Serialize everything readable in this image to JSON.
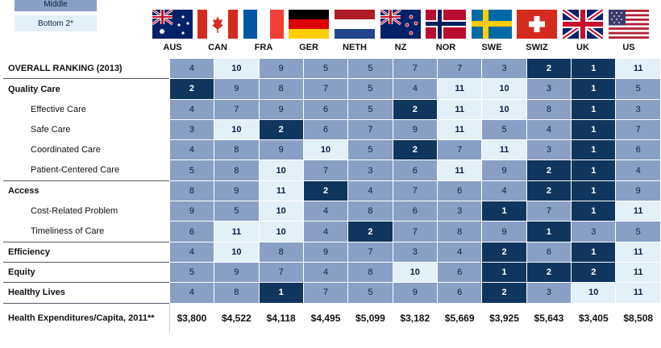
{
  "legend": {
    "middle": "Middle",
    "bottom": "Bottom 2*"
  },
  "flags": [
    "flag-australia-icon",
    "flag-canada-icon",
    "flag-france-icon",
    "flag-germany-icon",
    "flag-netherlands-icon",
    "flag-new-zealand-icon",
    "flag-norway-icon",
    "flag-sweden-icon",
    "flag-switzerland-icon",
    "flag-uk-icon",
    "flag-us-icon"
  ],
  "colors": {
    "top": "#0f365e",
    "middle": "#8a9fc6",
    "bottom": "#e4f0f8"
  },
  "chart_data": {
    "type": "table",
    "columns": [
      "AUS",
      "CAN",
      "FRA",
      "GER",
      "NETH",
      "NZ",
      "NOR",
      "SWE",
      "SWIZ",
      "UK",
      "US"
    ],
    "rows": [
      {
        "label": "OVERALL RANKING (2013)",
        "style": "bold",
        "values": [
          4,
          10,
          9,
          5,
          5,
          7,
          7,
          3,
          2,
          1,
          11
        ],
        "tiers": [
          "mid",
          "bot",
          "mid",
          "mid",
          "mid",
          "mid",
          "mid",
          "mid",
          "top",
          "top",
          "bot"
        ]
      },
      {
        "label": "Quality Care",
        "style": "bold",
        "values": [
          2,
          9,
          8,
          7,
          5,
          4,
          11,
          10,
          3,
          1,
          5
        ],
        "tiers": [
          "top",
          "mid",
          "mid",
          "mid",
          "mid",
          "mid",
          "bot",
          "bot",
          "mid",
          "top",
          "mid"
        ]
      },
      {
        "label": "Effective Care",
        "style": "sub",
        "values": [
          4,
          7,
          9,
          6,
          5,
          2,
          11,
          10,
          8,
          1,
          3
        ],
        "tiers": [
          "mid",
          "mid",
          "mid",
          "mid",
          "mid",
          "top",
          "bot",
          "bot",
          "mid",
          "top",
          "mid"
        ]
      },
      {
        "label": "Safe Care",
        "style": "sub",
        "values": [
          3,
          10,
          2,
          6,
          7,
          9,
          11,
          5,
          4,
          1,
          7
        ],
        "tiers": [
          "mid",
          "bot",
          "top",
          "mid",
          "mid",
          "mid",
          "bot",
          "mid",
          "mid",
          "top",
          "mid"
        ]
      },
      {
        "label": "Coordinated Care",
        "style": "sub",
        "values": [
          4,
          8,
          9,
          10,
          5,
          2,
          7,
          11,
          3,
          1,
          6
        ],
        "tiers": [
          "mid",
          "mid",
          "mid",
          "bot",
          "mid",
          "top",
          "mid",
          "bot",
          "mid",
          "top",
          "mid"
        ]
      },
      {
        "label": "Patient-Centered Care",
        "style": "sub",
        "values": [
          5,
          8,
          10,
          7,
          3,
          6,
          11,
          9,
          2,
          1,
          4
        ],
        "tiers": [
          "mid",
          "mid",
          "bot",
          "mid",
          "mid",
          "mid",
          "bot",
          "mid",
          "top",
          "top",
          "mid"
        ]
      },
      {
        "label": "Access",
        "style": "bold",
        "values": [
          8,
          9,
          11,
          2,
          4,
          7,
          6,
          4,
          2,
          1,
          9
        ],
        "tiers": [
          "mid",
          "mid",
          "bot",
          "top",
          "mid",
          "mid",
          "mid",
          "mid",
          "top",
          "top",
          "mid"
        ]
      },
      {
        "label": "Cost-Related Problem",
        "style": "sub",
        "values": [
          9,
          5,
          10,
          4,
          8,
          6,
          3,
          1,
          7,
          1,
          11
        ],
        "tiers": [
          "mid",
          "mid",
          "bot",
          "mid",
          "mid",
          "mid",
          "mid",
          "top",
          "mid",
          "top",
          "bot"
        ]
      },
      {
        "label": "Timeliness of Care",
        "style": "sub",
        "values": [
          6,
          11,
          10,
          4,
          2,
          7,
          8,
          9,
          1,
          3,
          5
        ],
        "tiers": [
          "mid",
          "bot",
          "bot",
          "mid",
          "top",
          "mid",
          "mid",
          "mid",
          "top",
          "mid",
          "mid"
        ]
      },
      {
        "label": "Efficiency",
        "style": "bold",
        "values": [
          4,
          10,
          8,
          9,
          7,
          3,
          4,
          2,
          6,
          1,
          11
        ],
        "tiers": [
          "mid",
          "bot",
          "mid",
          "mid",
          "mid",
          "mid",
          "mid",
          "top",
          "mid",
          "top",
          "bot"
        ]
      },
      {
        "label": "Equity",
        "style": "bold",
        "values": [
          5,
          9,
          7,
          4,
          8,
          10,
          6,
          1,
          2,
          2,
          11
        ],
        "tiers": [
          "mid",
          "mid",
          "mid",
          "mid",
          "mid",
          "bot",
          "mid",
          "top",
          "top",
          "top",
          "bot"
        ]
      },
      {
        "label": "Healthy Lives",
        "style": "bold",
        "values": [
          4,
          8,
          1,
          7,
          5,
          9,
          6,
          2,
          3,
          10,
          11
        ],
        "tiers": [
          "mid",
          "mid",
          "top",
          "mid",
          "mid",
          "mid",
          "mid",
          "top",
          "mid",
          "bot",
          "bot"
        ]
      }
    ],
    "expenditure": {
      "label": "Health Expenditures/Capita, 2011**",
      "values": [
        "$3,800",
        "$4,522",
        "$4,118",
        "$4,495",
        "$5,099",
        "$3,182",
        "$5,669",
        "$3,925",
        "$5,643",
        "$3,405",
        "$8,508"
      ]
    }
  }
}
